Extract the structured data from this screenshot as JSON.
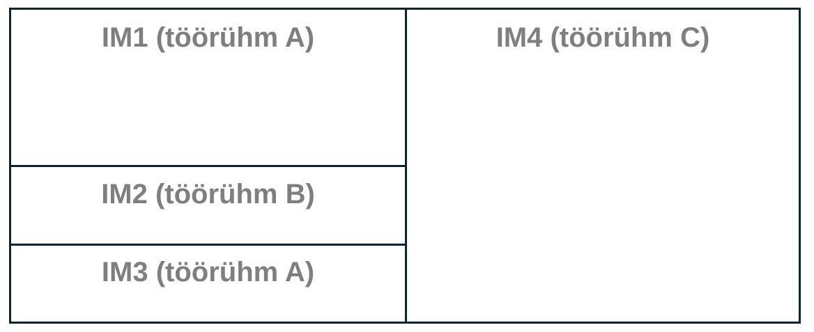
{
  "colors": {
    "border": "#0b2433",
    "text": "#7f7f7f"
  },
  "cells": [
    {
      "label": "IM1 (töörühm A)"
    },
    {
      "label": "IM2 (töörühm B)"
    },
    {
      "label": "IM3 (töörühm A)"
    },
    {
      "label": "IM4 (töörühm C)"
    }
  ]
}
